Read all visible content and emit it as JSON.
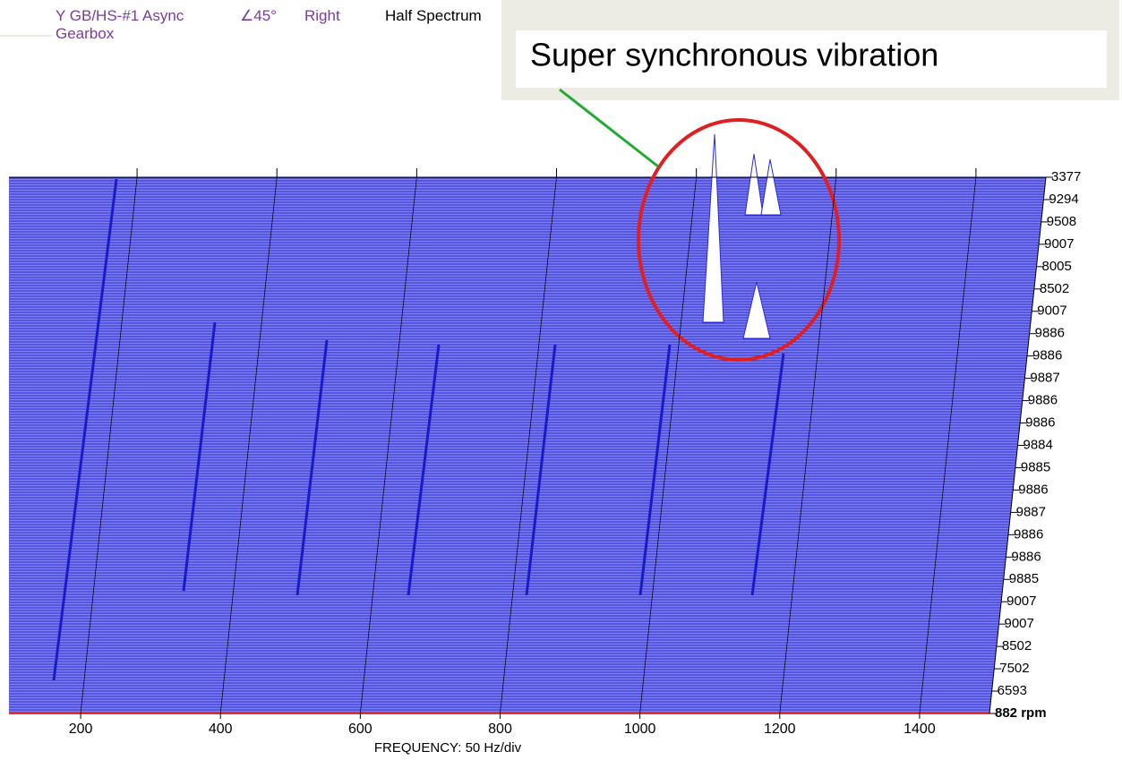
{
  "header": {
    "channel": "Y GB/HS-#1 Async Gearbox",
    "angle": "∠45°",
    "orientation": "Right",
    "spectrum": "Half Spectrum"
  },
  "annotation": "Super synchronous vibration",
  "chart_data": {
    "type": "waterfall",
    "x_label": "FREQUENCY: 50 Hz/div",
    "xlim": [
      100,
      1500
    ],
    "xticks": [
      200,
      400,
      600,
      800,
      1000,
      1200,
      1400
    ],
    "rows": [
      3377,
      9294,
      9508,
      9007,
      8005,
      8502,
      9007,
      9886,
      9886,
      9887,
      9886,
      9886,
      9884,
      9885,
      9886,
      9887,
      9886,
      9886,
      9885,
      9007,
      9007,
      8502,
      7502,
      6593,
      {
        "value": 882,
        "label": "882 rpm"
      }
    ],
    "color": "#2a2ad8",
    "grid": true
  }
}
